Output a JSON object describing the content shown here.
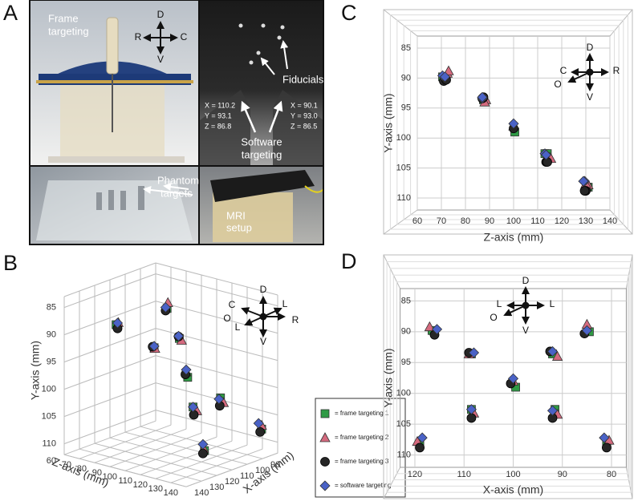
{
  "panel_labels": [
    "A",
    "B",
    "C",
    "D"
  ],
  "photos": {
    "frame_targeting": [
      "Frame",
      "targeting"
    ],
    "frame_compass": [
      "D",
      "R",
      "C",
      "V"
    ],
    "fiducials": "Fiducials",
    "coords_left": [
      "X = 110.2",
      "Y = 93.1",
      "Z = 86.8"
    ],
    "coords_right": [
      "X = 90.1",
      "Y = 93.0",
      "Z = 86.5"
    ],
    "software_targeting": [
      "Software",
      "targeting"
    ],
    "phantom_targets": [
      "Phantom",
      "targets"
    ],
    "mri_setup": [
      "MRI",
      "setup"
    ]
  },
  "chart_data": [
    {
      "type": "scatter3d",
      "x_label": "X-axis (mm)",
      "y_label": "Y-axis (mm)",
      "z_label": "Z-axis (mm)",
      "xlim": [
        80,
        140
      ],
      "xticks": [
        90,
        100,
        110,
        120,
        130,
        140
      ],
      "ylim": [
        112,
        83
      ],
      "yticks": [
        85,
        90,
        95,
        100,
        105,
        110
      ],
      "zlim": [
        60,
        140
      ],
      "zticks": [
        60,
        70,
        80,
        90,
        100,
        110,
        120,
        130,
        140
      ],
      "grid": true,
      "legend": "lower right",
      "compass_labels": [
        "D",
        "C",
        "L",
        "O",
        "L",
        "R",
        "V"
      ],
      "series": [
        {
          "name": "= frame targeting 1",
          "color": "#2f9a45",
          "marker": "square",
          "x": [
            116.5,
            84.5,
            108.5,
            92,
            99.5,
            108.5,
            91.5,
            119,
            81
          ],
          "z": [
            70.5,
            72,
            87.5,
            87.5,
            100.5,
            113,
            114,
            131,
            130.5
          ],
          "values": [
            89.8,
            90.0,
            93.6,
            93.6,
            99.0,
            102.6,
            102.6,
            108.2,
            108.2
          ]
        },
        {
          "name": "= frame targeting 2",
          "color": "#d46a7e",
          "marker": "triangle",
          "x": [
            117,
            85,
            109,
            91,
            100,
            108,
            91,
            119.5,
            80.5
          ],
          "z": [
            72.5,
            73,
            88.5,
            88,
            100,
            115,
            115.5,
            131,
            130
          ],
          "values": [
            89.2,
            88.8,
            93.6,
            94.0,
            98.0,
            103.2,
            103.4,
            107.8,
            107.6
          ]
        },
        {
          "name": "= frame targeting 3",
          "color": "#262626",
          "marker": "circle",
          "x": [
            116,
            85.5,
            109,
            92.5,
            100.5,
            108.5,
            92,
            119,
            81
          ],
          "z": [
            71,
            72,
            87,
            87.5,
            100,
            113.5,
            114,
            130,
            129.5
          ],
          "values": [
            90.5,
            90.3,
            93.4,
            93.2,
            98.4,
            104,
            104,
            108.8,
            108.8
          ]
        },
        {
          "name": "= software targeting",
          "color": "#4a62c6",
          "marker": "diamond",
          "x": [
            115.5,
            85,
            108,
            92,
            100,
            108.5,
            92,
            118.5,
            81.5
          ],
          "z": [
            70.5,
            71.5,
            87,
            87,
            100,
            113,
            113.5,
            129.5,
            129
          ],
          "values": [
            89.6,
            89.8,
            93.4,
            93.2,
            97.6,
            102.6,
            102.8,
            107.2,
            107.2
          ]
        }
      ]
    },
    {
      "type": "scatter",
      "x_label": "Z-axis (mm)",
      "y_label": "Y-axis (mm)",
      "xlim": [
        60,
        140
      ],
      "xticks": [
        60,
        70,
        80,
        90,
        100,
        110,
        120,
        130,
        140
      ],
      "ylim": [
        112,
        83
      ],
      "yticks": [
        85,
        90,
        95,
        100,
        105,
        110
      ],
      "grid": true,
      "compass_labels": [
        "D",
        "C",
        "R",
        "O",
        "V"
      ],
      "series": [
        {
          "color": "#2f9a45",
          "marker": "square",
          "x": [
            70.5,
            72,
            87.5,
            87.5,
            100.5,
            113,
            114,
            131,
            130.5
          ],
          "values": [
            89.8,
            90.0,
            93.6,
            93.6,
            99.0,
            102.6,
            102.6,
            108.2,
            108.2
          ]
        },
        {
          "color": "#d46a7e",
          "marker": "triangle",
          "x": [
            72.5,
            73,
            88.5,
            88,
            100,
            115,
            115.5,
            131,
            130
          ],
          "values": [
            89.2,
            88.8,
            93.6,
            94.0,
            98.0,
            103.2,
            103.4,
            107.8,
            107.6
          ]
        },
        {
          "color": "#262626",
          "marker": "circle",
          "x": [
            71,
            72,
            87,
            87.5,
            100,
            113.5,
            114,
            130,
            129.5
          ],
          "values": [
            90.5,
            90.3,
            93.4,
            93.2,
            98.4,
            104,
            104,
            108.8,
            108.8
          ]
        },
        {
          "color": "#4a62c6",
          "marker": "diamond",
          "x": [
            70.5,
            71.5,
            87,
            87,
            100,
            113,
            113.5,
            129.5,
            129
          ],
          "values": [
            89.6,
            89.8,
            93.4,
            93.2,
            97.6,
            102.6,
            102.8,
            107.2,
            107.2
          ]
        }
      ]
    },
    {
      "type": "scatter",
      "x_label": "X-axis (mm)",
      "y_label": "Y-axis (mm)",
      "xlim": [
        123,
        77
      ],
      "xticks": [
        120,
        110,
        100,
        90,
        80
      ],
      "ylim": [
        112,
        83
      ],
      "yticks": [
        85,
        90,
        95,
        100,
        105,
        110
      ],
      "grid": true,
      "compass_labels": [
        "D",
        "L",
        "L",
        "O",
        "V"
      ],
      "series": [
        {
          "color": "#2f9a45",
          "marker": "square",
          "x": [
            116.5,
            84.5,
            108.5,
            92,
            99.5,
            108.5,
            91.5,
            119,
            81
          ],
          "values": [
            89.8,
            90.0,
            93.6,
            93.6,
            99.0,
            102.6,
            102.6,
            108.2,
            108.2
          ]
        },
        {
          "color": "#d46a7e",
          "marker": "triangle",
          "x": [
            117,
            85,
            109,
            91,
            100,
            108,
            91,
            119.5,
            80.5
          ],
          "values": [
            89.2,
            88.8,
            93.6,
            94.0,
            98.0,
            103.2,
            103.4,
            107.8,
            107.6
          ]
        },
        {
          "color": "#262626",
          "marker": "circle",
          "x": [
            116,
            85.5,
            109,
            92.5,
            100.5,
            108.5,
            92,
            119,
            81
          ],
          "values": [
            90.5,
            90.3,
            93.4,
            93.2,
            98.4,
            104,
            104,
            108.8,
            108.8
          ]
        },
        {
          "color": "#4a62c6",
          "marker": "diamond",
          "x": [
            115.5,
            85,
            108,
            92,
            100,
            108.5,
            92,
            118.5,
            81.5
          ],
          "values": [
            89.6,
            89.8,
            93.4,
            93.2,
            97.6,
            102.6,
            102.8,
            107.2,
            107.2
          ]
        }
      ]
    }
  ]
}
